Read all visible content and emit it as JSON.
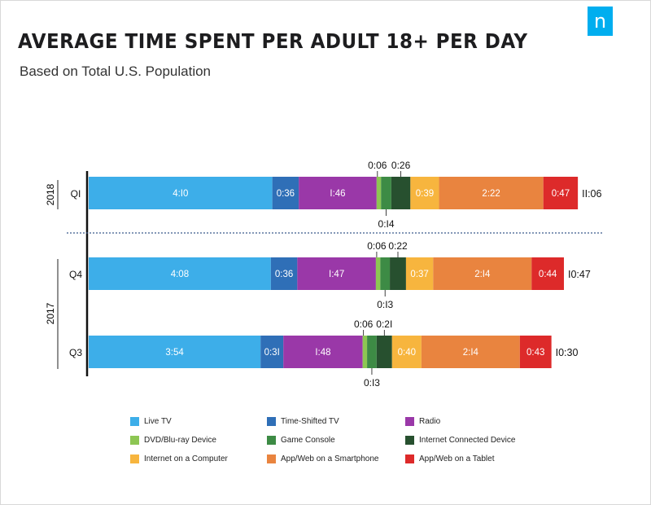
{
  "header": {
    "title": "AVERAGE TIME SPENT PER ADULT 18+ PER DAY",
    "subtitle": "Based on Total U.S. Population",
    "logo": "n"
  },
  "chart_data": {
    "type": "bar",
    "orientation": "horizontal",
    "stacked": true,
    "unit": "hours:minutes",
    "groups": [
      {
        "label": "2018",
        "rows": [
          "Q1"
        ]
      },
      {
        "label": "2017",
        "rows": [
          "Q4",
          "Q3"
        ]
      }
    ],
    "rows": [
      {
        "label": "Q1",
        "year": "2018",
        "total": "11:06",
        "values": [
          "4:10",
          "0:36",
          "1:46",
          "0:06",
          "0:14",
          "0:26",
          "0:39",
          "2:22",
          "0:47"
        ]
      },
      {
        "label": "Q4",
        "year": "2017",
        "total": "10:47",
        "values": [
          "4:08",
          "0:36",
          "1:47",
          "0:06",
          "0:13",
          "0:22",
          "0:37",
          "2:14",
          "0:44"
        ]
      },
      {
        "label": "Q3",
        "year": "2017",
        "total": "10:30",
        "values": [
          "3:54",
          "0:31",
          "1:48",
          "0:06",
          "0:13",
          "0:21",
          "0:40",
          "2:14",
          "0:43"
        ]
      }
    ],
    "series": [
      {
        "name": "Live TV",
        "color": "#3daee9"
      },
      {
        "name": "Time-Shifted TV",
        "color": "#2f6fb7"
      },
      {
        "name": "Radio",
        "color": "#9a38a8"
      },
      {
        "name": "DVD/Blu-ray Device",
        "color": "#8dc653"
      },
      {
        "name": "Game Console",
        "color": "#3d8b45"
      },
      {
        "name": "Internet Connected Device",
        "color": "#27502f"
      },
      {
        "name": "Internet on a Computer",
        "color": "#f7b53e"
      },
      {
        "name": "App/Web on a Smartphone",
        "color": "#e9843f"
      },
      {
        "name": "App/Web on a Tablet",
        "color": "#dd2a2a"
      }
    ],
    "legend_position": "bottom"
  }
}
